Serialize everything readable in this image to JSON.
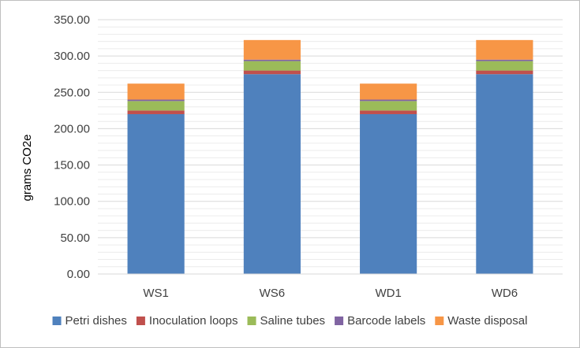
{
  "chart_data": {
    "type": "bar",
    "stacked": true,
    "title": "",
    "xlabel": "",
    "ylabel": "grams CO2e",
    "categories": [
      "WS1",
      "WS6",
      "WD1",
      "WD6"
    ],
    "series": [
      {
        "name": "Petri dishes",
        "color": "#4f81bd",
        "values": [
          220,
          275,
          220,
          275
        ]
      },
      {
        "name": "Inoculation loops",
        "color": "#c0504d",
        "values": [
          5,
          5,
          5,
          5
        ]
      },
      {
        "name": "Saline tubes",
        "color": "#9bbb59",
        "values": [
          13,
          13,
          13,
          13
        ]
      },
      {
        "name": "Barcode labels",
        "color": "#8064a2",
        "values": [
          2,
          2,
          2,
          2
        ]
      },
      {
        "name": "Waste disposal",
        "color": "#f79646",
        "values": [
          22,
          27,
          22,
          27
        ]
      }
    ],
    "ylim": [
      0,
      350
    ],
    "ytick_step": 50,
    "ytick_labels": [
      "0.00",
      "50.00",
      "100.00",
      "150.00",
      "200.00",
      "250.00",
      "300.00",
      "350.00"
    ],
    "minor_gridlines": true,
    "legend_position": "bottom"
  }
}
